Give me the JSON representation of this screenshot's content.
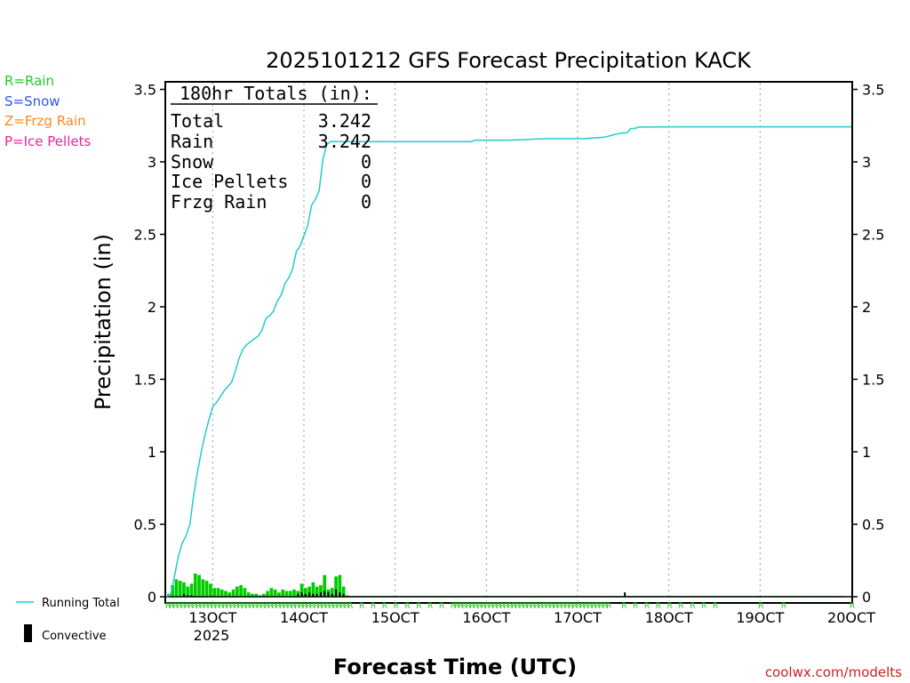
{
  "chart_data": {
    "type": "line",
    "title": "2025101212 GFS Forecast Precipitation KACK",
    "xlabel": "Forecast Time (UTC)",
    "ylabel": "Precipitation (in)",
    "ylim": [
      0,
      3.6
    ],
    "xlim_hours": [
      0,
      180
    ],
    "y_ticks": [
      "0",
      "0.5",
      "1",
      "1.5",
      "2",
      "2.5",
      "3",
      "3.5"
    ],
    "x_ticks": [
      {
        "label": "13OCT",
        "hour": 12
      },
      {
        "label": "14OCT",
        "hour": 36
      },
      {
        "label": "15OCT",
        "hour": 60
      },
      {
        "label": "16OCT",
        "hour": 84
      },
      {
        "label": "17OCT",
        "hour": 108
      },
      {
        "label": "18OCT",
        "hour": 132
      },
      {
        "label": "19OCT",
        "hour": 156
      },
      {
        "label": "20OCT",
        "hour": 180
      }
    ],
    "year_label": "2025",
    "legend_ptype": [
      {
        "text": "R=Rain",
        "color": "#22cc22"
      },
      {
        "text": "S=Snow",
        "color": "#3355ee"
      },
      {
        "text": "Z=Frzg Rain",
        "color": "#ff8822"
      },
      {
        "text": "P=Ice Pellets",
        "color": "#ee2299"
      }
    ],
    "legend_lines": {
      "running_total": "Running Total",
      "convective": "Convective"
    },
    "totals_box": {
      "header": "180hr Totals (in):",
      "rows": [
        {
          "label": "Total",
          "value": "3.242"
        },
        {
          "label": "Rain",
          "value": "3.242"
        },
        {
          "label": "Snow",
          "value": "0"
        },
        {
          "label": "Ice Pellets",
          "value": "0"
        },
        {
          "label": "Frzg Rain",
          "value": "0"
        }
      ]
    },
    "ptype_marker": "R",
    "series": [
      {
        "name": "Running Total",
        "color": "#22cccc",
        "points": [
          [
            0,
            0
          ],
          [
            1,
            0.02
          ],
          [
            2,
            0.15
          ],
          [
            3,
            0.28
          ],
          [
            4,
            0.37
          ],
          [
            5,
            0.42
          ],
          [
            6,
            0.5
          ],
          [
            7,
            0.7
          ],
          [
            8,
            0.86
          ],
          [
            9,
            1.0
          ],
          [
            10,
            1.12
          ],
          [
            11,
            1.22
          ],
          [
            12,
            1.31
          ],
          [
            13,
            1.34
          ],
          [
            14,
            1.38
          ],
          [
            15,
            1.42
          ],
          [
            16,
            1.45
          ],
          [
            17,
            1.48
          ],
          [
            18,
            1.56
          ],
          [
            19,
            1.65
          ],
          [
            20,
            1.71
          ],
          [
            21,
            1.74
          ],
          [
            22,
            1.76
          ],
          [
            23,
            1.78
          ],
          [
            24,
            1.8
          ],
          [
            25,
            1.84
          ],
          [
            26,
            1.92
          ],
          [
            27,
            1.94
          ],
          [
            28,
            1.97
          ],
          [
            29,
            2.04
          ],
          [
            30,
            2.08
          ],
          [
            31,
            2.16
          ],
          [
            32,
            2.2
          ],
          [
            33,
            2.26
          ],
          [
            34,
            2.38
          ],
          [
            35,
            2.42
          ],
          [
            36,
            2.49
          ],
          [
            37,
            2.56
          ],
          [
            38,
            2.7
          ],
          [
            39,
            2.74
          ],
          [
            40,
            2.8
          ],
          [
            41,
            3.02
          ],
          [
            42,
            3.12
          ],
          [
            43,
            3.14
          ],
          [
            44,
            3.14
          ],
          [
            48,
            3.14
          ],
          [
            60,
            3.14
          ],
          [
            72,
            3.14
          ],
          [
            80,
            3.14
          ],
          [
            81,
            3.15
          ],
          [
            90,
            3.15
          ],
          [
            100,
            3.16
          ],
          [
            110,
            3.16
          ],
          [
            115,
            3.17
          ],
          [
            118,
            3.19
          ],
          [
            120,
            3.2
          ],
          [
            121,
            3.2
          ],
          [
            122,
            3.23
          ],
          [
            123,
            3.23
          ],
          [
            124,
            3.24
          ],
          [
            135,
            3.242
          ],
          [
            150,
            3.242
          ],
          [
            165,
            3.242
          ],
          [
            180,
            3.242
          ]
        ]
      }
    ],
    "interval_precip": {
      "name": "Interval Precipitation",
      "color": "#00cc00",
      "start_hour": 0,
      "step_hours": 1,
      "values": [
        0.02,
        0.08,
        0.12,
        0.11,
        0.1,
        0.07,
        0.09,
        0.16,
        0.15,
        0.12,
        0.11,
        0.09,
        0.06,
        0.06,
        0.05,
        0.04,
        0.03,
        0.05,
        0.07,
        0.08,
        0.06,
        0.03,
        0.02,
        0.02,
        0.01,
        0.02,
        0.04,
        0.06,
        0.05,
        0.03,
        0.05,
        0.04,
        0.04,
        0.05,
        0.04,
        0.09,
        0.06,
        0.07,
        0.1,
        0.07,
        0.08,
        0.15,
        0.05,
        0.06,
        0.14,
        0.15,
        0.07,
        0.01,
        0.005,
        0.003,
        0.002,
        0.002,
        0.003,
        0.002,
        0.004,
        0.003,
        0.002,
        0.003,
        0.002,
        0.002,
        0.003,
        0.002,
        0.002,
        0.002,
        0.003,
        0.002,
        0.002,
        0.003,
        0.002,
        0.002,
        0.002,
        0.004,
        0.003,
        0.002,
        0.002,
        0.003,
        0.003,
        0.002,
        0.002,
        0.003,
        0.003,
        0.003,
        0.002,
        0.003,
        0.002,
        0.002,
        0.003,
        0.002,
        0.002,
        0.003,
        0.002,
        0.003,
        0.002,
        0.002,
        0.003,
        0.002,
        0.003,
        0.002,
        0.002,
        0.003,
        0.002,
        0.003,
        0.002,
        0.002,
        0.003,
        0.002,
        0.002,
        0.003,
        0.002,
        0.002,
        0.002,
        0.003,
        0.003,
        0.002,
        0.002,
        0.002,
        0.002,
        0.003,
        0.002,
        0.002,
        0.002,
        0.002,
        0.003,
        0.002,
        0.002,
        0.002,
        0.002,
        0.002,
        0.002,
        0.002,
        0.002,
        0.002,
        0.002,
        0.002,
        0.002,
        0.002,
        0.002,
        0.002,
        0.002,
        0.002,
        0.002,
        0.002,
        0.002,
        0.002,
        0.002,
        0.002,
        0.002,
        0.002,
        0.002,
        0.002,
        0.002,
        0.002,
        0.002,
        0.002,
        0.002,
        0.002,
        0.002,
        0.002,
        0.002,
        0.002,
        0.002,
        0.002,
        0.002,
        0.002,
        0.002,
        0.002,
        0.002,
        0.002,
        0.002,
        0.002,
        0.002,
        0.002,
        0.002,
        0.002,
        0.002,
        0.002,
        0.002,
        0.002
      ]
    },
    "convective_precip": {
      "name": "Convective",
      "color": "#000000",
      "hours": [
        4,
        5,
        6,
        34,
        35,
        36,
        37,
        38,
        39,
        40,
        41,
        42,
        43,
        44,
        45,
        46,
        120
      ],
      "values": [
        0.02,
        0.01,
        0.01,
        0.02,
        0.03,
        0.02,
        0.03,
        0.02,
        0.02,
        0.03,
        0.04,
        0.03,
        0.02,
        0.05,
        0.03,
        0.02,
        0.03
      ]
    },
    "ptype_hours": [
      0,
      1,
      2,
      3,
      4,
      5,
      6,
      7,
      8,
      9,
      10,
      11,
      12,
      13,
      14,
      15,
      16,
      17,
      18,
      19,
      20,
      21,
      22,
      23,
      24,
      25,
      26,
      27,
      28,
      29,
      30,
      31,
      32,
      33,
      34,
      35,
      36,
      37,
      38,
      39,
      40,
      41,
      42,
      43,
      44,
      45,
      46,
      47,
      48,
      51,
      54,
      57,
      60,
      63,
      66,
      69,
      72,
      75,
      76,
      77,
      78,
      79,
      80,
      81,
      82,
      83,
      84,
      85,
      86,
      87,
      88,
      89,
      90,
      91,
      92,
      93,
      94,
      95,
      96,
      97,
      98,
      99,
      100,
      101,
      102,
      103,
      104,
      105,
      106,
      107,
      108,
      109,
      110,
      111,
      112,
      113,
      114,
      115,
      116,
      120,
      123,
      126,
      129,
      132,
      135,
      138,
      141,
      144,
      156,
      162,
      180
    ]
  },
  "credit": "coolwx.com/modelts"
}
